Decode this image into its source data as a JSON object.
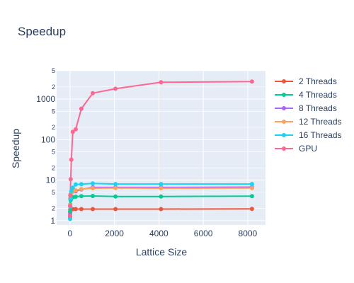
{
  "chart_data": {
    "type": "line",
    "title": "Speedup",
    "xlabel": "Lattice Size",
    "ylabel": "Speedup",
    "xlim": [
      -600,
      8800
    ],
    "ylim": [
      0.78,
      5000
    ],
    "y_scale": "log",
    "grid": true,
    "legend_position": "right",
    "x_ticks": [
      "0",
      "2000",
      "4000",
      "6000",
      "8000"
    ],
    "x_tick_values": [
      0,
      2000,
      4000,
      6000,
      8000
    ],
    "y_major_ticks": [
      "1",
      "10",
      "100",
      "1000"
    ],
    "y_major_tick_values": [
      1,
      10,
      100,
      1000
    ],
    "y_minor_ticks": [
      "2",
      "5",
      "2",
      "5",
      "2",
      "5",
      "2",
      "5"
    ],
    "y_minor_tick_values": [
      2,
      5,
      20,
      50,
      200,
      500,
      2000,
      5000
    ],
    "x": [
      4,
      8,
      16,
      32,
      64,
      128,
      256,
      512,
      1024,
      2048,
      4096,
      8192
    ],
    "series": [
      {
        "name": "2 Threads",
        "color": "#EF553B",
        "values": [
          1.2,
          1.6,
          1.9,
          1.95,
          1.9,
          1.92,
          1.93,
          1.93,
          1.93,
          1.93,
          1.93,
          1.95
        ]
      },
      {
        "name": "4 Threads",
        "color": "#00CC96",
        "values": [
          1.3,
          1.7,
          2.5,
          3.2,
          3.6,
          3.8,
          3.9,
          4.0,
          4.05,
          3.95,
          3.95,
          4.0
        ]
      },
      {
        "name": "8 Threads",
        "color": "#AB63FA",
        "values": [
          1.4,
          2.3,
          3.5,
          4.5,
          5.2,
          5.4,
          5.3,
          5.9,
          6.6,
          6.6,
          6.6,
          6.7
        ]
      },
      {
        "name": "12 Threads",
        "color": "#FFA15A",
        "values": [
          1.3,
          2.4,
          3.6,
          4.3,
          4.8,
          5.2,
          5.6,
          6.0,
          6.3,
          6.4,
          6.3,
          6.4
        ]
      },
      {
        "name": "16 Threads",
        "color": "#19D3F3",
        "values": [
          1.1,
          1.3,
          2.2,
          3.5,
          5.3,
          6.5,
          7.8,
          7.9,
          8.3,
          8.0,
          8.0,
          8.0
        ]
      },
      {
        "name": "GPU",
        "color": "#FF6692",
        "values": [
          1.3,
          2.3,
          4.2,
          10.5,
          32,
          155,
          180,
          580,
          1400,
          1800,
          2600,
          2700
        ]
      }
    ]
  }
}
